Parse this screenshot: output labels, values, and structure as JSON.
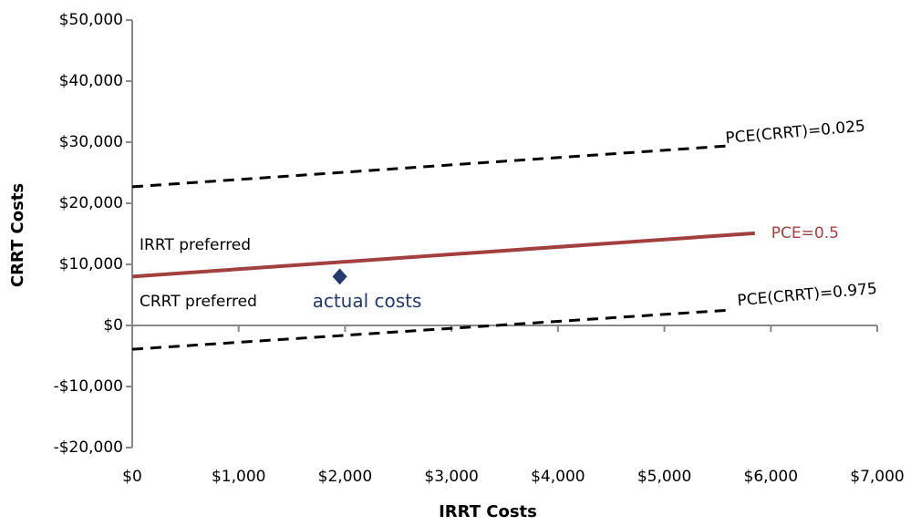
{
  "chart_data": {
    "type": "line",
    "x_label": "IRRT Costs",
    "y_label": "CRRT Costs",
    "xlim": [
      0,
      7000
    ],
    "xticks": [
      {
        "value": 0,
        "label": "$0"
      },
      {
        "value": 1000,
        "label": "$1,000"
      },
      {
        "value": 2000,
        "label": "$2,000"
      },
      {
        "value": 3000,
        "label": "$3,000"
      },
      {
        "value": 4000,
        "label": "$4,000"
      },
      {
        "value": 5000,
        "label": "$5,000"
      },
      {
        "value": 6000,
        "label": "$6,000"
      },
      {
        "value": 7000,
        "label": "$7,000"
      }
    ],
    "ylim": [
      -20000,
      50000
    ],
    "yticks": [
      {
        "value": -20000,
        "label": "-$20,000"
      },
      {
        "value": -10000,
        "label": "-$10,000"
      },
      {
        "value": 0,
        "label": "$0"
      },
      {
        "value": 10000,
        "label": "$10,000"
      },
      {
        "value": 20000,
        "label": "$20,000"
      },
      {
        "value": 30000,
        "label": "$30,000"
      },
      {
        "value": 40000,
        "label": "$40,000"
      },
      {
        "value": 50000,
        "label": "$50,000"
      }
    ],
    "series": [
      {
        "name": "PCE(CRRT)=0.025",
        "color": "#000000",
        "dashed": true,
        "x": [
          0,
          5600
        ],
        "values": [
          22700,
          29400
        ]
      },
      {
        "name": "PCE=0.5",
        "color": "#a0403f",
        "dashed": false,
        "x": [
          0,
          5850
        ],
        "values": [
          8000,
          15100
        ]
      },
      {
        "name": "PCE(CRRT)=0.975",
        "color": "#000000",
        "dashed": true,
        "x": [
          0,
          5600
        ],
        "values": [
          -3900,
          2500
        ]
      },
      {
        "name": "actual costs",
        "color": "#243a6e",
        "marker": "diamond",
        "x": [
          1950
        ],
        "values": [
          8000
        ]
      }
    ],
    "annotations": [
      "IRRT preferred",
      "CRRT preferred"
    ]
  }
}
